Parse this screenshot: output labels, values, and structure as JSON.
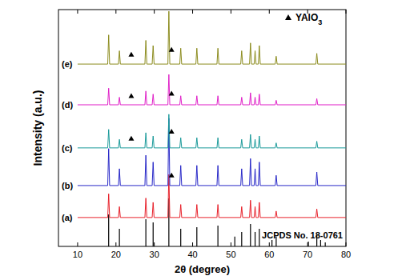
{
  "chart_data": {
    "type": "line",
    "xlabel": "2θ (degree)",
    "ylabel": "Intensity (a.u.)",
    "xlim": [
      5,
      80
    ],
    "xticks": [
      10,
      20,
      30,
      40,
      50,
      60,
      70,
      80
    ],
    "ylim": [
      0,
      100
    ],
    "tick_labels": "x",
    "legend": "upper right",
    "series": [
      {
        "name": "JCPDS No. 18-0761",
        "type": "stick",
        "color": "#000000",
        "x": [
          18.1,
          20.9,
          27.8,
          29.7,
          33.8,
          36.9,
          41.1,
          46.6,
          51.0,
          52.8,
          55.1,
          56.3,
          57.4,
          60.7,
          61.8,
          70.2,
          72.4,
          73.4,
          74.6
        ],
        "values": [
          13.5,
          7.4,
          11.5,
          10.1,
          20.3,
          7.4,
          8.1,
          8.8,
          4.1,
          6.1,
          9.5,
          6.1,
          7.4,
          2.7,
          4.1,
          2.0,
          4.7,
          2.7,
          1.7
        ]
      },
      {
        "name": "(a)",
        "type": "line",
        "color": "#e8202a",
        "x": [
          10,
          17.85,
          18.1,
          18.35,
          20.65,
          20.9,
          21.15,
          27.55,
          27.8,
          28.05,
          29.45,
          29.7,
          29.95,
          33.55,
          33.8,
          34.05,
          36.65,
          36.9,
          37.15,
          40.85,
          41.1,
          41.35,
          46.35,
          46.6,
          46.85,
          52.55,
          52.8,
          53.05,
          54.85,
          55.1,
          55.35,
          56.05,
          56.3,
          56.55,
          57.15,
          57.4,
          57.65,
          61.55,
          61.8,
          62.05,
          72.15,
          72.4,
          72.65,
          80
        ],
        "values": [
          12.2,
          12.2,
          22.2,
          12.2,
          12.2,
          16.8,
          12.2,
          12.2,
          20.4,
          12.2,
          12.2,
          18.6,
          12.2,
          12.2,
          30.4,
          12.2,
          12.2,
          17.7,
          12.2,
          12.2,
          17.7,
          12.2,
          12.2,
          17.7,
          12.2,
          12.2,
          16.8,
          12.2,
          12.2,
          19.5,
          12.2,
          12.2,
          16.8,
          12.2,
          12.2,
          18.6,
          12.2,
          12.2,
          14.9,
          12.2,
          12.2,
          15.8,
          12.2,
          12.2
        ]
      },
      {
        "name": "(b)",
        "type": "line",
        "color": "#2828c8",
        "x": [
          10,
          17.85,
          18.1,
          18.35,
          20.65,
          20.9,
          21.15,
          27.55,
          27.8,
          28.05,
          29.45,
          29.7,
          29.95,
          33.55,
          33.8,
          34.05,
          36.65,
          36.9,
          37.15,
          40.85,
          41.1,
          41.35,
          46.35,
          46.6,
          46.85,
          52.55,
          52.8,
          53.05,
          54.85,
          55.1,
          55.35,
          56.05,
          56.3,
          56.55,
          57.15,
          57.4,
          57.65,
          61.55,
          61.8,
          62.05,
          72.15,
          72.4,
          72.65,
          80
        ],
        "values": [
          25.7,
          25.7,
          41.3,
          25.7,
          25.7,
          32.8,
          25.7,
          25.7,
          38.5,
          25.7,
          25.7,
          35.6,
          25.7,
          25.7,
          54.1,
          25.7,
          25.7,
          34.2,
          25.7,
          25.7,
          34.2,
          25.7,
          25.7,
          34.2,
          25.7,
          25.7,
          32.8,
          25.7,
          25.7,
          37.1,
          25.7,
          25.7,
          32.8,
          25.7,
          25.7,
          35.6,
          25.7,
          25.7,
          30.0,
          25.7,
          25.7,
          31.4,
          25.7,
          25.7
        ]
      },
      {
        "name": "(c)",
        "type": "line",
        "color": "#1a9a9a",
        "x": [
          10,
          17.85,
          18.1,
          18.35,
          20.65,
          20.9,
          21.15,
          27.55,
          27.8,
          28.05,
          29.45,
          29.7,
          29.95,
          33.55,
          33.8,
          34.05,
          36.65,
          36.9,
          37.15,
          40.85,
          41.1,
          41.35,
          46.35,
          46.6,
          46.85,
          52.55,
          52.8,
          53.05,
          54.85,
          55.1,
          55.35,
          56.05,
          56.3,
          56.55,
          57.15,
          57.4,
          57.65,
          61.55,
          61.8,
          62.05,
          72.15,
          72.4,
          72.65,
          80
        ],
        "values": [
          41.6,
          41.6,
          49.4,
          41.6,
          41.6,
          45.2,
          41.6,
          41.6,
          48.0,
          41.6,
          41.6,
          46.6,
          41.6,
          41.6,
          55.8,
          41.6,
          41.6,
          45.9,
          41.6,
          41.6,
          45.9,
          41.6,
          41.6,
          45.9,
          41.6,
          41.6,
          45.2,
          41.6,
          41.6,
          47.3,
          41.6,
          41.6,
          45.2,
          41.6,
          41.6,
          46.6,
          41.6,
          41.6,
          43.7,
          41.6,
          41.6,
          44.4,
          41.6,
          41.6
        ]
      },
      {
        "name": "(d)",
        "type": "line",
        "color": "#e020c8",
        "x": [
          10,
          17.85,
          18.1,
          18.35,
          20.65,
          20.9,
          21.15,
          27.55,
          27.8,
          28.05,
          29.45,
          29.7,
          29.95,
          33.55,
          33.8,
          34.05,
          36.65,
          36.9,
          37.15,
          40.85,
          41.1,
          41.35,
          46.35,
          46.6,
          46.85,
          52.55,
          52.8,
          53.05,
          54.85,
          55.1,
          55.35,
          56.05,
          56.3,
          56.55,
          57.15,
          57.4,
          57.65,
          61.55,
          61.8,
          62.05,
          72.15,
          72.4,
          72.65,
          80
        ],
        "values": [
          59.8,
          59.8,
          66.8,
          59.8,
          59.8,
          63.0,
          59.8,
          59.8,
          65.6,
          59.8,
          59.8,
          64.3,
          59.8,
          59.8,
          72.6,
          59.8,
          59.8,
          63.6,
          59.8,
          59.8,
          63.6,
          59.8,
          59.8,
          63.6,
          59.8,
          59.8,
          63.0,
          59.8,
          59.8,
          64.9,
          59.8,
          59.8,
          63.0,
          59.8,
          59.8,
          64.3,
          59.8,
          59.8,
          61.7,
          59.8,
          59.8,
          62.4,
          59.8,
          59.8
        ]
      },
      {
        "name": "(e)",
        "type": "line",
        "color": "#8c8c1e",
        "x": [
          10,
          17.85,
          18.1,
          18.35,
          20.65,
          20.9,
          21.15,
          27.55,
          27.8,
          28.05,
          29.45,
          29.7,
          29.95,
          33.55,
          33.8,
          34.05,
          36.65,
          36.9,
          37.15,
          40.85,
          41.1,
          41.35,
          46.35,
          46.6,
          46.85,
          52.55,
          52.8,
          53.05,
          54.85,
          55.1,
          55.35,
          56.05,
          56.3,
          56.55,
          57.15,
          57.4,
          57.65,
          61.55,
          61.8,
          62.05,
          72.15,
          72.4,
          72.65,
          80
        ],
        "values": [
          77.0,
          77.0,
          89.3,
          77.0,
          77.0,
          82.6,
          77.0,
          77.0,
          87.0,
          77.0,
          77.0,
          84.8,
          77.0,
          77.0,
          99.3,
          77.0,
          77.0,
          83.7,
          77.0,
          77.0,
          83.7,
          77.0,
          77.0,
          83.7,
          77.0,
          77.0,
          82.6,
          77.0,
          77.0,
          85.9,
          77.0,
          77.0,
          82.6,
          77.0,
          77.0,
          84.8,
          77.0,
          77.0,
          80.3,
          77.0,
          77.0,
          81.5,
          77.0,
          77.0
        ]
      },
      {
        "name": "YAlO3",
        "type": "scatter",
        "marker": "triangle",
        "color": "#000000",
        "x": [
          34.5,
          24.0,
          34.5,
          24.0,
          34.5,
          24.0,
          34.5
        ],
        "values": [
          30.0,
          45.5,
          48.5,
          63.5,
          64.5,
          81.0,
          83.0
        ]
      }
    ]
  }
}
